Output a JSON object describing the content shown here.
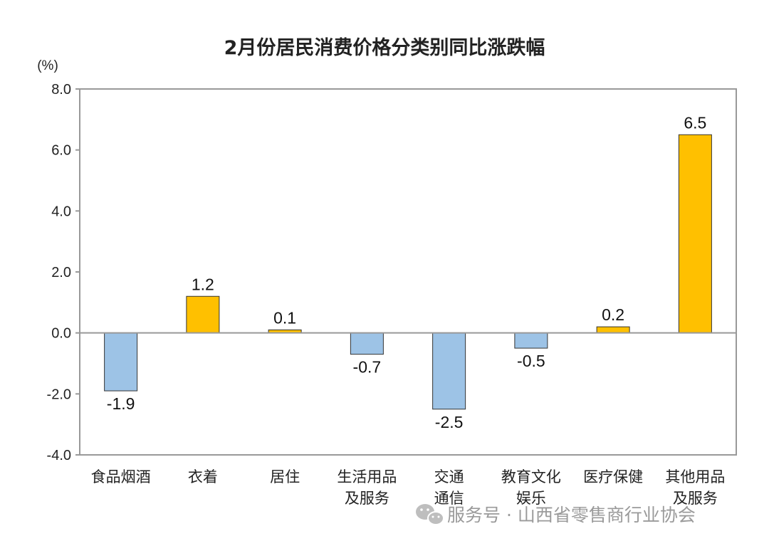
{
  "chart_data": {
    "type": "bar",
    "title": "2月份居民消费价格分类别同比涨跌幅",
    "unit_label": "(%)",
    "categories": [
      [
        "食品烟酒"
      ],
      [
        "衣着"
      ],
      [
        "居住"
      ],
      [
        "生活用品",
        "及服务"
      ],
      [
        "交通",
        "通信"
      ],
      [
        "教育文化",
        "娱乐"
      ],
      [
        "医疗保健"
      ],
      [
        "其他用品",
        "及服务"
      ]
    ],
    "values": [
      -1.9,
      1.2,
      0.1,
      -0.7,
      -2.5,
      -0.5,
      0.2,
      6.5
    ],
    "value_labels": [
      "-1.9",
      "1.2",
      "0.1",
      "-0.7",
      "-2.5",
      "-0.5",
      "0.2",
      "6.5"
    ],
    "ylim": [
      -4.0,
      8.0
    ],
    "yticks": [
      "-4.0",
      "-2.0",
      "0.0",
      "2.0",
      "4.0",
      "6.0",
      "8.0"
    ],
    "grid": false,
    "colors": {
      "positive": "#FFC000",
      "negative": "#9DC3E6",
      "bar_border": "#333333",
      "axis": "#999999"
    }
  },
  "watermark": {
    "icon": "wechat-icon",
    "text": "服务号 · 山西省零售商行业协会"
  }
}
